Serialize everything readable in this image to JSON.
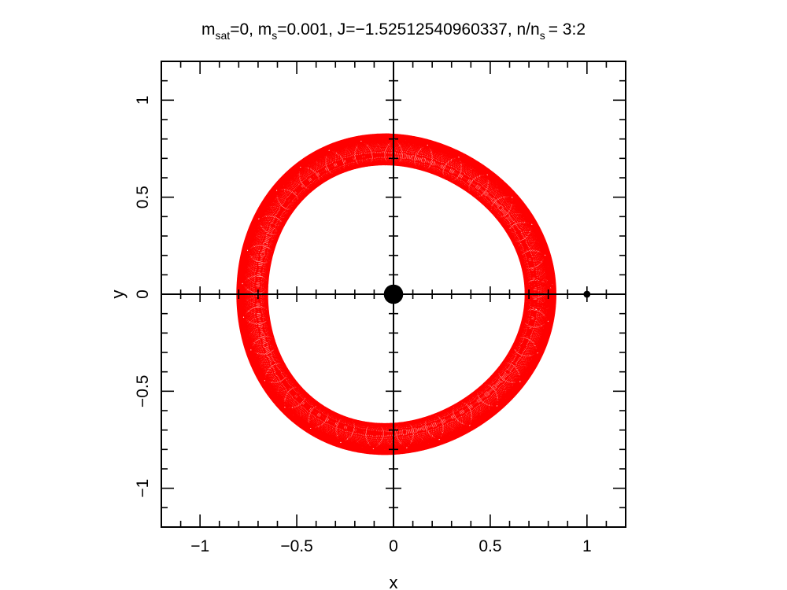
{
  "chart_data": {
    "type": "line",
    "title": {
      "m_label": "m",
      "sat_sub": "sat",
      "eq_zero": "=0, m",
      "s_sub": "s",
      "ms_value": "=0.001, J=−1.52512540960337, n/n",
      "s_sub2": "s",
      "ratio": "= 3:2"
    },
    "xlabel": "x",
    "ylabel": "y",
    "xlim": [
      -1.2,
      1.2
    ],
    "ylim": [
      -1.2,
      1.2
    ],
    "x_ticks": [
      -1,
      -0.5,
      0,
      0.5,
      1
    ],
    "x_tick_labels": [
      "−1",
      "−0.5",
      "0",
      "0.5",
      "1"
    ],
    "y_ticks": [
      -1,
      -0.5,
      0,
      0.5,
      1
    ],
    "y_tick_labels": [
      "−1",
      "−0.5",
      "0",
      "0.5",
      "1"
    ],
    "minor_tick_step": 0.1,
    "axes_through_origin": true,
    "grid": false,
    "series": [
      {
        "kind": "orbit-trajectory",
        "color": "#ff0000",
        "base_radius": 0.745,
        "lobe_amplitude": 0.02,
        "lobe_count": 3,
        "epicycle_amplitude": 0.08,
        "epicycle_frequency": 30,
        "epicycle_phase_step": 0.61,
        "loops": 24
      }
    ],
    "bodies": [
      {
        "x": 0,
        "y": 0,
        "radius": 0.05,
        "color": "#000000"
      },
      {
        "x": 1,
        "y": 0,
        "radius": 0.018,
        "color": "#000000"
      }
    ]
  }
}
